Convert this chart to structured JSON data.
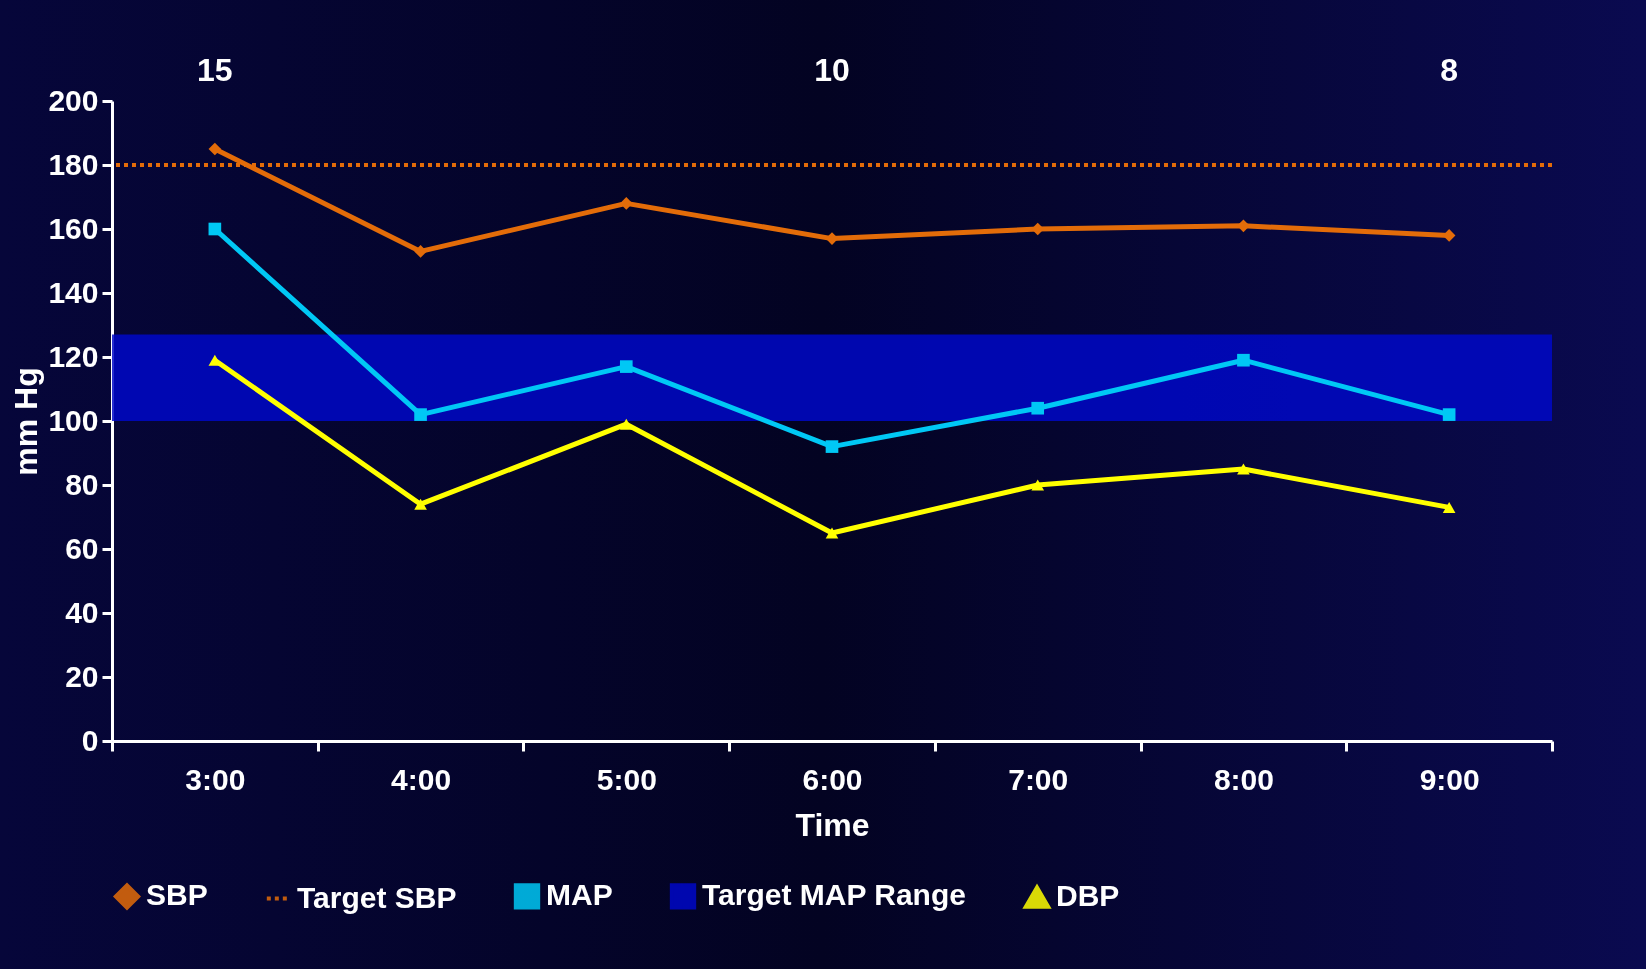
{
  "chart_data": {
    "type": "line",
    "xlabel": "Time",
    "ylabel": "mm Hg",
    "categories": [
      "3:00",
      "4:00",
      "5:00",
      "6:00",
      "7:00",
      "8:00",
      "9:00"
    ],
    "ylim": [
      0,
      200
    ],
    "yticks": [
      0,
      20,
      40,
      60,
      80,
      100,
      120,
      140,
      160,
      180,
      200
    ],
    "grid": false,
    "legend": "bottom",
    "line_style": "solid",
    "series": [
      {
        "name": "SBP",
        "color": "#e36c09",
        "marker": "diamond",
        "values": [
          185,
          153,
          168,
          157,
          160,
          161,
          158
        ]
      },
      {
        "name": "MAP",
        "color": "#00c8f5",
        "marker": "square",
        "values": [
          160,
          102,
          117,
          92,
          104,
          119,
          102
        ]
      },
      {
        "name": "DBP",
        "color": "#ffff00",
        "marker": "triangle",
        "values": [
          119,
          74,
          99,
          65,
          80,
          85,
          73
        ]
      }
    ],
    "ref_lines": [
      {
        "axis": "y",
        "value": 180,
        "label": "Target SBP",
        "color": "#e36c09",
        "line_style": "dotted"
      }
    ],
    "bands": [
      {
        "axis": "y",
        "from": 100,
        "to": 127,
        "label": "Target MAP Range",
        "color": "#0008c8"
      }
    ],
    "annotations": [
      "15",
      "10",
      "8"
    ]
  }
}
